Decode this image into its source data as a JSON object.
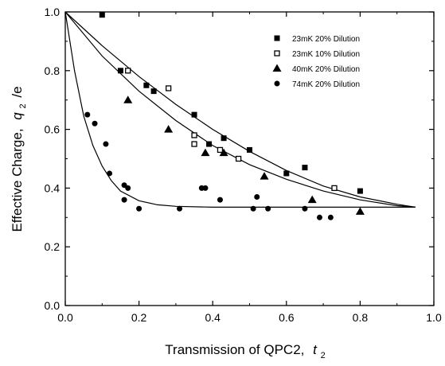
{
  "chart_data": {
    "type": "scatter",
    "title": "",
    "xlabel": "Transmission of QPC2,",
    "xlabel_var": "t",
    "xlabel_sub": "2",
    "ylabel": "Effective Charge,",
    "ylabel_var": "q",
    "ylabel_sub": "2",
    "ylabel_tail": "/e",
    "xlim": [
      0.0,
      1.0
    ],
    "ylim": [
      0.0,
      1.0
    ],
    "x_ticks": [
      "0.0",
      "0.2",
      "0.4",
      "0.6",
      "0.8",
      "1.0"
    ],
    "y_ticks": [
      "0.0",
      "0.2",
      "0.4",
      "0.6",
      "0.8",
      "1.0"
    ],
    "grid": false,
    "legend_position": "top-right",
    "series": [
      {
        "name": "23mK 20% Dilution",
        "marker": "filled-square",
        "points": [
          [
            0.1,
            0.99
          ],
          [
            0.15,
            0.8
          ],
          [
            0.22,
            0.75
          ],
          [
            0.24,
            0.73
          ],
          [
            0.35,
            0.65
          ],
          [
            0.39,
            0.55
          ],
          [
            0.43,
            0.57
          ],
          [
            0.5,
            0.53
          ],
          [
            0.6,
            0.45
          ],
          [
            0.65,
            0.47
          ],
          [
            0.8,
            0.39
          ]
        ]
      },
      {
        "name": "23mK 10% Dilution",
        "marker": "open-square",
        "points": [
          [
            0.17,
            0.8
          ],
          [
            0.28,
            0.74
          ],
          [
            0.35,
            0.58
          ],
          [
            0.35,
            0.55
          ],
          [
            0.42,
            0.53
          ],
          [
            0.47,
            0.5
          ],
          [
            0.73,
            0.4
          ]
        ]
      },
      {
        "name": "40mK 20% Dilution",
        "marker": "filled-triangle",
        "points": [
          [
            0.17,
            0.7
          ],
          [
            0.28,
            0.6
          ],
          [
            0.38,
            0.52
          ],
          [
            0.43,
            0.52
          ],
          [
            0.54,
            0.44
          ],
          [
            0.67,
            0.36
          ],
          [
            0.8,
            0.32
          ]
        ]
      },
      {
        "name": "74mK 20% Dilution",
        "marker": "filled-circle",
        "points": [
          [
            0.06,
            0.65
          ],
          [
            0.08,
            0.62
          ],
          [
            0.11,
            0.55
          ],
          [
            0.12,
            0.45
          ],
          [
            0.16,
            0.41
          ],
          [
            0.17,
            0.4
          ],
          [
            0.16,
            0.36
          ],
          [
            0.2,
            0.33
          ],
          [
            0.31,
            0.33
          ],
          [
            0.37,
            0.4
          ],
          [
            0.38,
            0.4
          ],
          [
            0.42,
            0.36
          ],
          [
            0.51,
            0.33
          ],
          [
            0.52,
            0.37
          ],
          [
            0.55,
            0.33
          ],
          [
            0.65,
            0.33
          ],
          [
            0.69,
            0.3
          ],
          [
            0.72,
            0.3
          ]
        ]
      }
    ],
    "curves": [
      {
        "description_key": "upper",
        "points": [
          [
            0.0,
            1.0
          ],
          [
            0.1,
            0.885
          ],
          [
            0.2,
            0.78
          ],
          [
            0.3,
            0.685
          ],
          [
            0.4,
            0.6
          ],
          [
            0.5,
            0.525
          ],
          [
            0.6,
            0.46
          ],
          [
            0.7,
            0.407
          ],
          [
            0.8,
            0.37
          ],
          [
            0.9,
            0.345
          ],
          [
            0.95,
            0.335
          ]
        ]
      },
      {
        "description_key": "middle",
        "points": [
          [
            0.0,
            1.0
          ],
          [
            0.1,
            0.85
          ],
          [
            0.2,
            0.73
          ],
          [
            0.3,
            0.63
          ],
          [
            0.4,
            0.545
          ],
          [
            0.5,
            0.48
          ],
          [
            0.6,
            0.43
          ],
          [
            0.7,
            0.39
          ],
          [
            0.8,
            0.36
          ],
          [
            0.9,
            0.34
          ],
          [
            0.95,
            0.335
          ]
        ]
      },
      {
        "description_key": "lower",
        "points": [
          [
            0.0,
            1.0
          ],
          [
            0.025,
            0.8
          ],
          [
            0.05,
            0.645
          ],
          [
            0.075,
            0.545
          ],
          [
            0.1,
            0.475
          ],
          [
            0.125,
            0.425
          ],
          [
            0.15,
            0.39
          ],
          [
            0.2,
            0.357
          ],
          [
            0.25,
            0.343
          ],
          [
            0.3,
            0.338
          ],
          [
            0.4,
            0.335
          ],
          [
            0.6,
            0.335
          ],
          [
            0.8,
            0.335
          ],
          [
            0.95,
            0.335
          ]
        ]
      }
    ]
  }
}
